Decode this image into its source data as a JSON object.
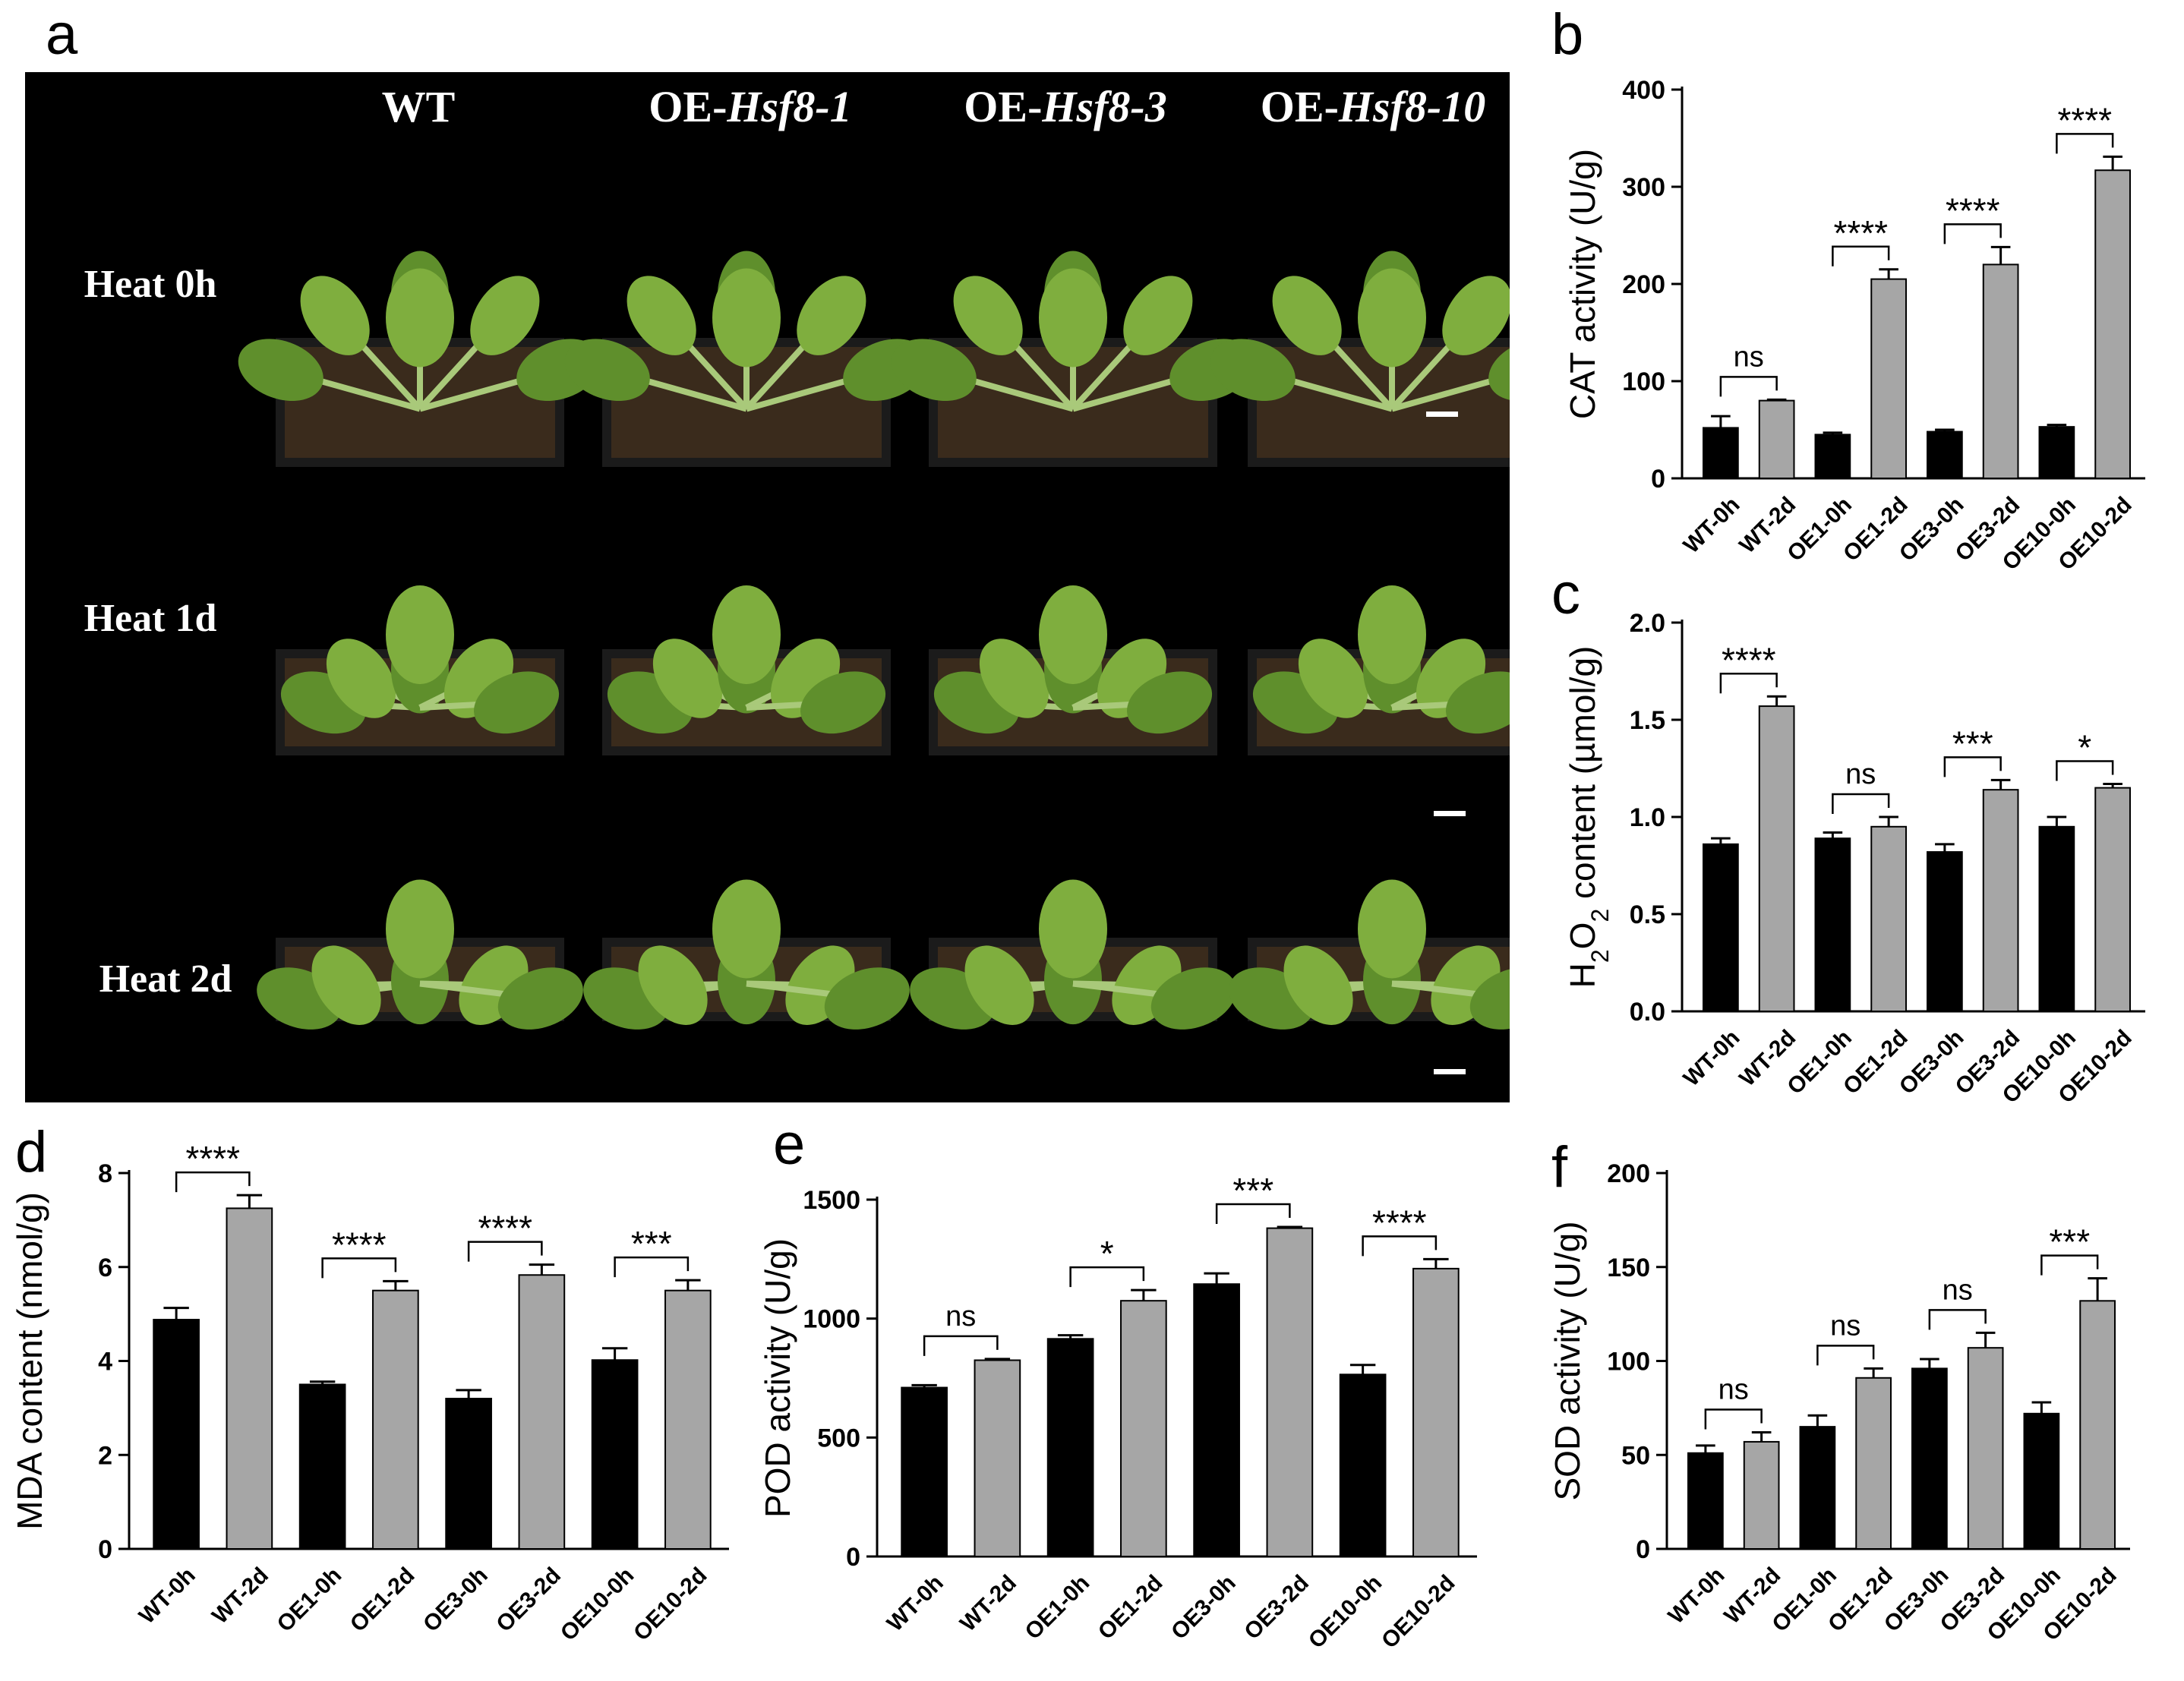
{
  "panels": {
    "a": "a",
    "b": "b",
    "c": "c",
    "d": "d",
    "e": "e",
    "f": "f"
  },
  "photo_panel": {
    "columns": [
      {
        "prefix": "WT",
        "italic": ""
      },
      {
        "prefix": "OE-",
        "italic": "Hsf8-1"
      },
      {
        "prefix": "OE-",
        "italic": "Hsf8-3"
      },
      {
        "prefix": "OE-",
        "italic": "Hsf8-10"
      }
    ],
    "rows": [
      "Heat 0h",
      "Heat 1d",
      "Heat 2d"
    ],
    "colors": {
      "background": "#000000",
      "soil": "#3a2b1c",
      "pot": "#1b1b1b",
      "leaf": "#7fae3e",
      "leaf_dark": "#5f8f2c",
      "stem": "#a9c97a"
    }
  },
  "colors": {
    "black_bar": "#000000",
    "grey_bar": "#a6a6a6"
  },
  "chart_data": [
    {
      "id": "b",
      "type": "bar",
      "categories": [
        "WT-0h",
        "WT-2d",
        "OE1-0h",
        "OE1-2d",
        "OE3-0h",
        "OE3-2d",
        "OE10-0h",
        "OE10-2d"
      ],
      "values": [
        52,
        80,
        45,
        205,
        48,
        220,
        53,
        317
      ],
      "errors": [
        12,
        1,
        2,
        10,
        2,
        18,
        2,
        14
      ],
      "ylabel": "CAT activity (U/g)",
      "ylim": [
        0,
        400
      ],
      "yticks": [
        0,
        100,
        200,
        300,
        400
      ],
      "significance": [
        "ns",
        "****",
        "****",
        "****"
      ]
    },
    {
      "id": "c",
      "type": "bar",
      "categories": [
        "WT-0h",
        "WT-2d",
        "OE1-0h",
        "OE1-2d",
        "OE3-0h",
        "OE3-2d",
        "OE10-0h",
        "OE10-2d"
      ],
      "values": [
        0.86,
        1.57,
        0.89,
        0.95,
        0.82,
        1.14,
        0.95,
        1.15
      ],
      "errors": [
        0.03,
        0.05,
        0.03,
        0.05,
        0.04,
        0.05,
        0.05,
        0.02
      ],
      "ylabel": {
        "pre": "H",
        "sub1": "2",
        "mid": "O",
        "sub2": "2",
        "post": " content (µmol/g)"
      },
      "ylim": [
        0,
        2.0
      ],
      "yticks": [
        "0.0",
        "0.5",
        "1.0",
        "1.5",
        "2.0"
      ],
      "significance": [
        "****",
        "ns",
        "***",
        "*"
      ]
    },
    {
      "id": "d",
      "type": "bar",
      "categories": [
        "WT-0h",
        "WT-2d",
        "OE1-0h",
        "OE1-2d",
        "OE3-0h",
        "OE3-2d",
        "OE10-0h",
        "OE10-2d"
      ],
      "values": [
        4.88,
        7.25,
        3.5,
        5.5,
        3.2,
        5.83,
        4.02,
        5.5
      ],
      "errors": [
        0.25,
        0.28,
        0.06,
        0.2,
        0.18,
        0.22,
        0.25,
        0.22
      ],
      "ylabel": "MDA content (nmol/g)",
      "ylim": [
        0,
        8
      ],
      "yticks": [
        0,
        2,
        4,
        6,
        8
      ],
      "significance": [
        "****",
        "****",
        "****",
        "***"
      ]
    },
    {
      "id": "e",
      "type": "bar",
      "categories": [
        "WT-0h",
        "WT-2d",
        "OE1-0h",
        "OE1-2d",
        "OE3-0h",
        "OE3-2d",
        "OE10-0h",
        "OE10-2d"
      ],
      "values": [
        710,
        825,
        915,
        1075,
        1145,
        1380,
        765,
        1210
      ],
      "errors": [
        10,
        5,
        15,
        45,
        45,
        5,
        40,
        40
      ],
      "ylabel": "POD activity (U/g)",
      "ylim": [
        0,
        1500
      ],
      "yticks": [
        0,
        500,
        1000,
        1500
      ],
      "significance": [
        "ns",
        "*",
        "***",
        "****"
      ]
    },
    {
      "id": "f",
      "type": "bar",
      "categories": [
        "WT-0h",
        "WT-2d",
        "OE1-0h",
        "OE1-2d",
        "OE3-0h",
        "OE3-2d",
        "OE10-0h",
        "OE10-2d"
      ],
      "values": [
        51,
        57,
        65,
        91,
        96,
        107,
        72,
        132
      ],
      "errors": [
        4,
        5,
        6,
        5,
        5,
        8,
        6,
        12
      ],
      "ylabel": "SOD activity (U/g)",
      "ylim": [
        0,
        200
      ],
      "yticks": [
        0,
        50,
        100,
        150,
        200
      ],
      "significance": [
        "ns",
        "ns",
        "ns",
        "***"
      ]
    }
  ]
}
